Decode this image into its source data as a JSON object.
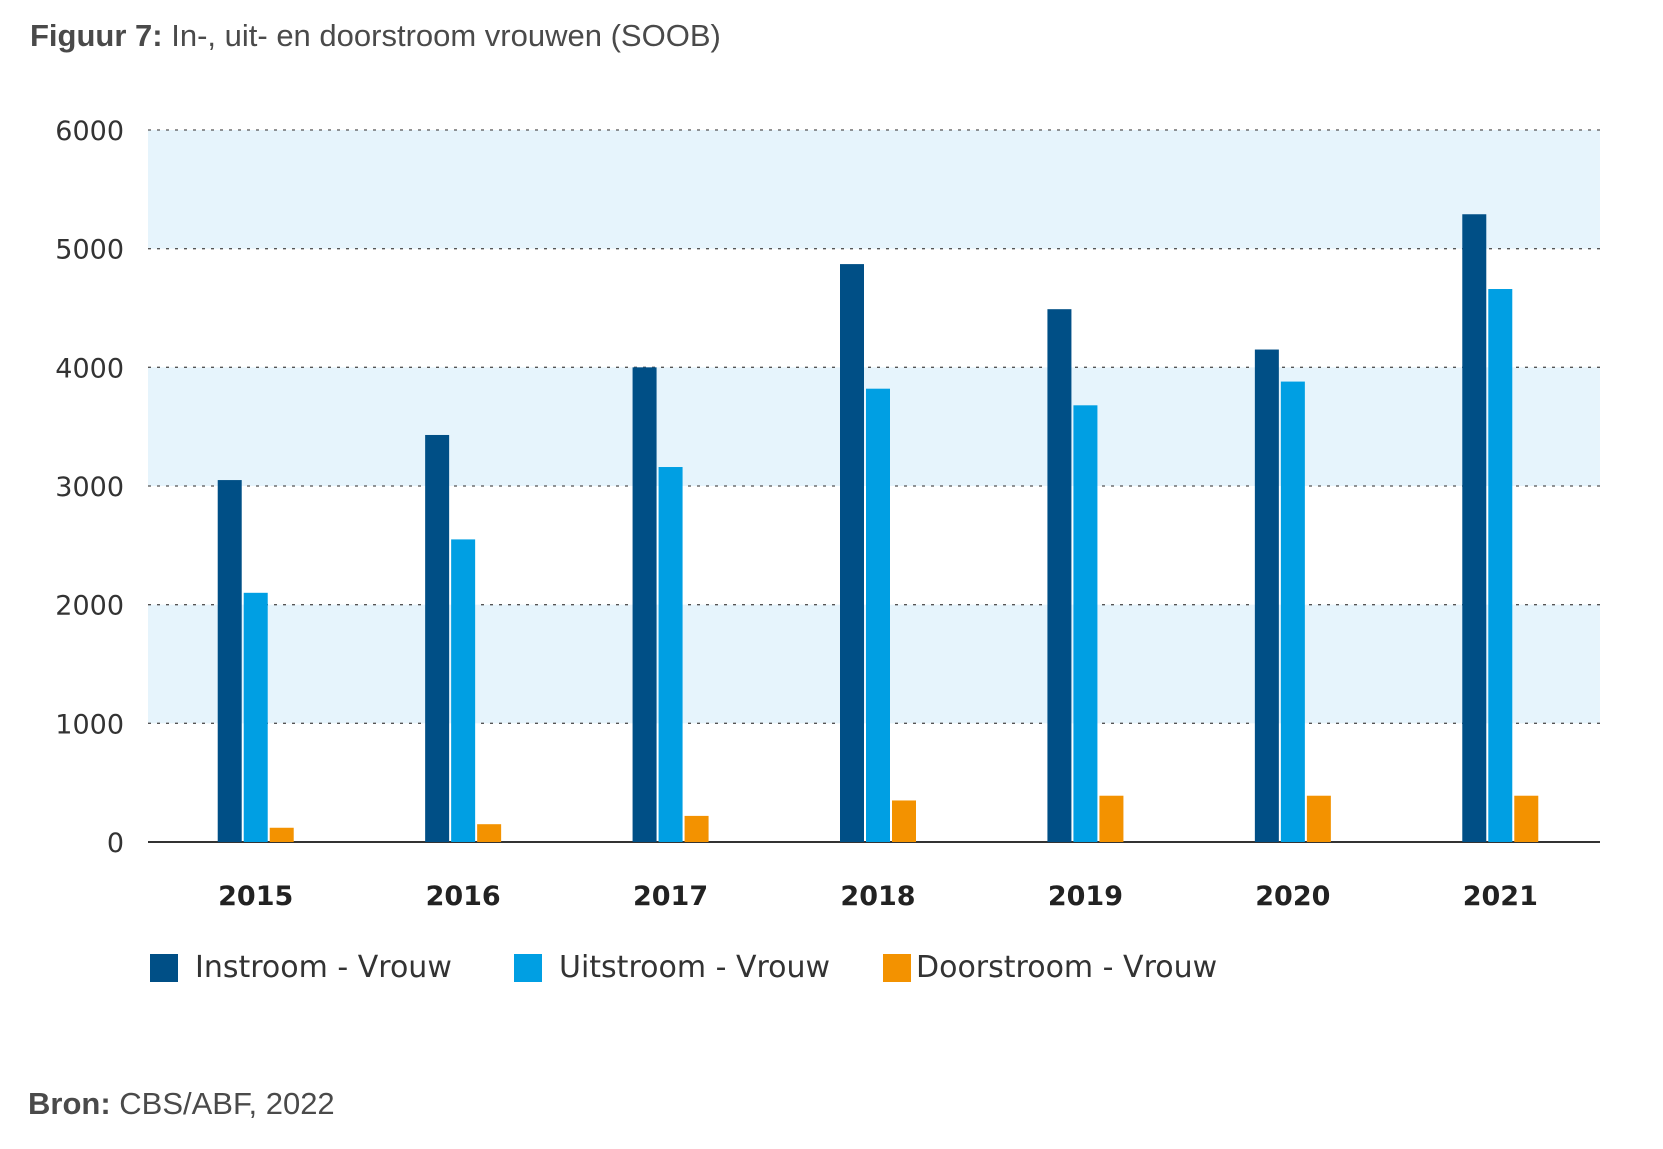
{
  "figure": {
    "label": "Figuur 7:",
    "title": "In-, uit- en doorstroom vrouwen (SOOB)",
    "source_label": "Bron:",
    "source": "CBS/ABF, 2022"
  },
  "colors": {
    "instroom": "#004f86",
    "uitstroom": "#009fe3",
    "doorstroom": "#f39200",
    "band": "#e6f4fc",
    "grid": "#555555",
    "axis": "#333333"
  },
  "chart_data": {
    "type": "bar",
    "title": "In-, uit- en doorstroom vrouwen (SOOB)",
    "xlabel": "",
    "ylabel": "",
    "categories": [
      "2015",
      "2016",
      "2017",
      "2018",
      "2019",
      "2020",
      "2021"
    ],
    "series": [
      {
        "name": "Instroom - Vrouw",
        "values": [
          3050,
          3430,
          4000,
          4870,
          4490,
          4150,
          5290
        ]
      },
      {
        "name": "Uitstroom - Vrouw",
        "values": [
          2100,
          2550,
          3160,
          3820,
          3680,
          3880,
          4660
        ]
      },
      {
        "name": "Doorstroom - Vrouw",
        "values": [
          120,
          150,
          220,
          350,
          390,
          390,
          390
        ]
      }
    ],
    "ylim": [
      0,
      6000
    ],
    "yticks": [
      "0",
      "1000",
      "2000",
      "3000",
      "4000",
      "5000",
      "6000"
    ],
    "grid": true,
    "legend": "bottom"
  }
}
